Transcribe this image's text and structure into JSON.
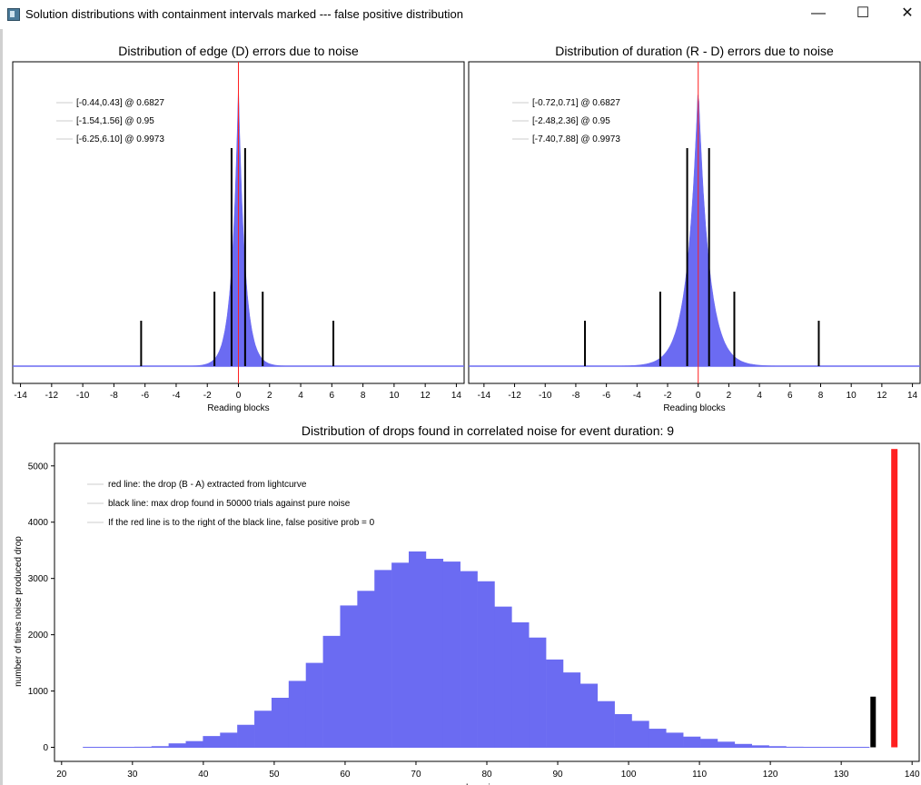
{
  "window": {
    "title": "Solution distributions with containment intervals marked --- false positive distribution",
    "minimize_glyph": "—",
    "maximize_glyph": "☐",
    "close_glyph": "✕"
  },
  "colors": {
    "hist": "#6b6bf2",
    "red": "#ff2020",
    "black": "#000000",
    "axis": "#000000"
  },
  "chart_data": [
    {
      "type": "area",
      "title": "Distribution of edge (D) errors due to noise",
      "xlabel": "Reading blocks",
      "ylabel": "",
      "xlim": [
        -14.5,
        14.5
      ],
      "xticks": [
        -14,
        -12,
        -10,
        -8,
        -6,
        -4,
        -2,
        0,
        2,
        4,
        6,
        8,
        10,
        12,
        14
      ],
      "legend_position": "top-left",
      "legend": [
        "[-0.44,0.43] @ 0.6827",
        "[-1.54,1.56] @ 0.95",
        "[-6.25,6.10] @ 0.9973"
      ],
      "intervals": [
        {
          "low": -0.44,
          "high": 0.43,
          "level": 0.6827
        },
        {
          "low": -1.54,
          "high": 1.56,
          "level": 0.95
        },
        {
          "low": -6.25,
          "high": 6.1,
          "level": 0.9973
        }
      ],
      "center_line": 0,
      "distribution_scale": 0.42
    },
    {
      "type": "area",
      "title": "Distribution of duration (R - D) errors due to noise",
      "xlabel": "Reading blocks",
      "ylabel": "",
      "xlim": [
        -15,
        14.5
      ],
      "xticks": [
        -14,
        -12,
        -10,
        -8,
        -6,
        -4,
        -2,
        0,
        2,
        4,
        6,
        8,
        10,
        12,
        14
      ],
      "legend_position": "top-left",
      "legend": [
        "[-0.72,0.71] @ 0.6827",
        "[-2.48,2.36] @ 0.95",
        "[-7.40,7.88] @ 0.9973"
      ],
      "intervals": [
        {
          "low": -0.72,
          "high": 0.71,
          "level": 0.6827
        },
        {
          "low": -2.48,
          "high": 2.36,
          "level": 0.95
        },
        {
          "low": -7.4,
          "high": 7.88,
          "level": 0.9973
        }
      ],
      "center_line": 0,
      "distribution_scale": 0.7
    },
    {
      "type": "bar",
      "title": "Distribution of drops found in correlated noise for event duration: 9",
      "xlabel": "drop size",
      "ylabel": "number of times noise produced drop",
      "xlim": [
        19,
        141
      ],
      "ylim": [
        -250,
        5400
      ],
      "xticks": [
        20,
        30,
        40,
        50,
        60,
        70,
        80,
        90,
        100,
        110,
        120,
        130,
        140
      ],
      "yticks": [
        0,
        1000,
        2000,
        3000,
        4000,
        5000
      ],
      "legend_position": "top-left",
      "legend": [
        "red line: the drop (B - A) extracted from lightcurve",
        "black line: max drop found in 50000 trials against pure noise",
        "If the red line is to the right of the black line, false positive prob = 0"
      ],
      "bin_start": 23,
      "bin_width": 2.42,
      "values": [
        0,
        0,
        0,
        10,
        20,
        70,
        110,
        200,
        260,
        400,
        650,
        880,
        1180,
        1500,
        1980,
        2520,
        2780,
        3150,
        3280,
        3480,
        3350,
        3300,
        3130,
        2950,
        2500,
        2220,
        1950,
        1560,
        1330,
        1130,
        820,
        590,
        470,
        330,
        260,
        190,
        150,
        100,
        60,
        35,
        20,
        10,
        5,
        2,
        0,
        0,
        0
      ],
      "red_line": {
        "x": 137.5,
        "height": 5300
      },
      "black_line": {
        "x": 134.5,
        "height": 900
      }
    }
  ]
}
